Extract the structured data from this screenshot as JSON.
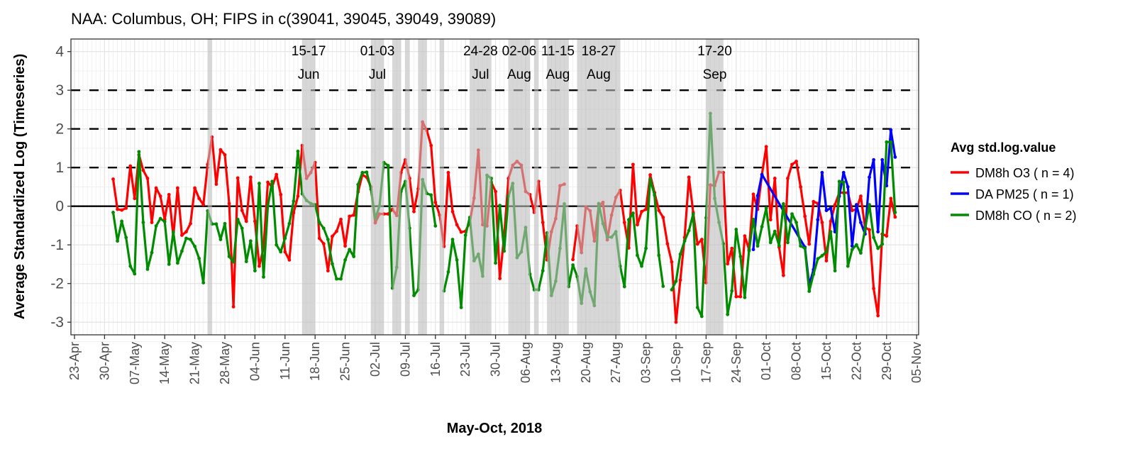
{
  "chart_data": {
    "type": "line",
    "title": "NAA: Columbus, OH; FIPS in c(39041, 39045, 39049, 39089)",
    "xlabel": "May-Oct, 2018",
    "ylabel": "Average Standardized Log (Timeseries)",
    "x_origin_date": "2018-04-23",
    "xlim_dates": [
      "2018-04-22",
      "2018-11-06"
    ],
    "ylim": [
      -3.3,
      4.3
    ],
    "y_ticks": [
      "4",
      "3",
      "2",
      "1",
      "0",
      "-1",
      "-2",
      "-3"
    ],
    "y_tick_values": [
      4,
      3,
      2,
      1,
      0,
      -1,
      -2,
      -3
    ],
    "x_ticks": [
      "23-Apr",
      "30-Apr",
      "07-May",
      "14-May",
      "21-May",
      "28-May",
      "04-Jun",
      "11-Jun",
      "18-Jun",
      "25-Jun",
      "02-Jul",
      "09-Jul",
      "16-Jul",
      "23-Jul",
      "30-Jul",
      "06-Aug",
      "13-Aug",
      "20-Aug",
      "27-Aug",
      "03-Sep",
      "10-Sep",
      "17-Sep",
      "24-Sep",
      "01-Oct",
      "08-Oct",
      "15-Oct",
      "22-Oct",
      "29-Oct",
      "05-Nov"
    ],
    "reference_lines": [
      {
        "y": 0,
        "style": "solid"
      },
      {
        "y": 1,
        "style": "dashed"
      },
      {
        "y": 2,
        "style": "dashed"
      },
      {
        "y": 3,
        "style": "dashed"
      }
    ],
    "grid": true,
    "legend": {
      "title": "Avg std.log.value",
      "placement": "right"
    },
    "series": [
      {
        "name": "DM8h O3 ( n = 4)",
        "color": "#ff0000",
        "start_date": "2018-05-02",
        "connect_gaps": false,
        "values": [
          0.7,
          -0.08,
          -0.1,
          -0.05,
          1.04,
          0.2,
          1.33,
          0.93,
          0.72,
          -0.42,
          0.47,
          0.26,
          -0.34,
          0.3,
          -0.78,
          0.47,
          -0.75,
          -0.66,
          -0.45,
          0.47,
          0.2,
          0.04,
          1.08,
          1.79,
          0.57,
          1.46,
          1.33,
          0.07,
          -2.6,
          0.73,
          -0.11,
          -0.39,
          0.75,
          -0.39,
          -1.55,
          -1.08,
          0.62,
          0.5,
          0.82,
          0.3,
          -1.18,
          -1.39,
          -0.17,
          0.26,
          1.57,
          0.72,
          0.87,
          1.13,
          -0.83,
          -0.97,
          -1.67,
          -0.78,
          -0.65,
          -0.34,
          -1.03,
          -0.26,
          -0.23,
          0.37,
          0.81,
          0.75,
          0.5,
          -0.43,
          -0.2,
          -0.2,
          -0.2,
          -0.08,
          -0.24,
          0.87,
          1.2,
          0.72,
          -0.14,
          0.45,
          2.18,
          1.96,
          1.57,
          0.1,
          -0.23,
          -1.04,
          0.87,
          -0.14,
          -0.48,
          -0.67,
          -0.65,
          -0.42,
          0.21,
          1.45,
          -0.48,
          -0.51,
          0.62,
          0.38,
          -1.87,
          -0.77,
          0.72,
          1.06,
          1.16,
          1.06,
          0.38,
          0.3,
          -0.16,
          0.64,
          -0.42,
          -1.39,
          -0.66,
          -0.32,
          0.53,
          0.57,
          null,
          -1.38,
          -0.51,
          -1.2,
          -0.02,
          -0.12,
          -0.9,
          0.01,
          0.1,
          -0.87,
          -0.23,
          0.23,
          0.41,
          -0.42,
          -1.08,
          1.08,
          -0.48,
          -0.14,
          -0.08,
          0.81,
          0.35,
          -0.11,
          -0.29,
          -0.97,
          -1.44,
          -3.0,
          -1.91,
          -0.81,
          0.75,
          -0.16,
          -0.98,
          -0.86,
          -1.98,
          0.55,
          0.53,
          0.88,
          0.87,
          -1.49,
          -1.09,
          -2.34,
          -2.34,
          -0.77,
          -1.12,
          0.31,
          -0.08,
          0.82,
          1.54,
          -0.35,
          0.72,
          -1.06,
          -1.79,
          0.72,
          1.08,
          1.16,
          0.5,
          -0.26,
          -0.98,
          0.12,
          0.07,
          -0.42,
          -1.41,
          -0.39,
          0.04,
          0.35,
          0.35,
          0.35,
          -0.11,
          -0.08,
          0.26,
          -0.55,
          -0.61,
          -2.13,
          -2.83,
          -0.72,
          -0.77,
          0.2,
          -0.28
        ]
      },
      {
        "name": "DA PM25 ( n = 1)",
        "color": "#0000ff",
        "start_date": "2018-09-28",
        "connect_gaps": true,
        "values": [
          -1.12,
          0.27,
          0.82,
          null,
          null,
          null,
          null,
          null,
          null,
          null,
          null,
          null,
          -1.06,
          -2.04,
          -1.64,
          -0.35,
          0.87,
          -0.11,
          -0.05,
          -0.66,
          0.26,
          0.87,
          0.5,
          -1.03,
          0.04,
          -0.42,
          -0.72,
          0.75,
          1.2,
          -0.66,
          1.2,
          0.53,
          1.97,
          1.27
        ]
      },
      {
        "name": "DM8h CO ( n = 2)",
        "color": "#008b00",
        "start_date": "2018-05-02",
        "connect_gaps": false,
        "values": [
          -0.16,
          -0.9,
          -0.39,
          -0.81,
          -1.55,
          -1.75,
          1.41,
          -0.42,
          -1.63,
          -1.2,
          -0.51,
          -0.32,
          -0.4,
          -1.5,
          -0.67,
          -1.47,
          -1.16,
          -0.83,
          -0.86,
          -1.04,
          -1.35,
          -1.98,
          -0.12,
          -0.46,
          -0.46,
          -0.86,
          -0.45,
          -1.3,
          -1.44,
          -0.34,
          -0.57,
          -1.43,
          -0.9,
          -1.67,
          0.59,
          -1.83,
          0.01,
          0.64,
          -1.0,
          -1.18,
          -0.83,
          -0.45,
          0.13,
          1.42,
          0.32,
          0.15,
          0.07,
          0.04,
          -0.42,
          -0.57,
          -0.86,
          -1.49,
          -1.88,
          -1.88,
          -1.39,
          -1.12,
          -1.3,
          0.56,
          0.87,
          0.88,
          0.44,
          -0.32,
          0.01,
          1.13,
          1.05,
          -2.12,
          -1.58,
          0.38,
          0.64,
          -0.57,
          -2.31,
          -2.16,
          0.69,
          0.33,
          0.29,
          -0.51,
          null,
          -2.19,
          -1.7,
          -0.86,
          -1.39,
          -2.62,
          -0.75,
          -0.29,
          -1.41,
          -1.24,
          -1.81,
          0.8,
          0.72,
          -1.47,
          0.02,
          -1.16,
          0.26,
          0.59,
          -1.33,
          -1.18,
          -0.55,
          -1.76,
          -2.16,
          -2.16,
          -1.67,
          -0.69,
          -2.31,
          -1.94,
          -1.09,
          0.06,
          -2.08,
          -1.52,
          -1.82,
          -2.51,
          -1.62,
          -2.21,
          -2.57,
          0.07,
          -0.45,
          -0.8,
          -0.8,
          -0.66,
          -1.55,
          -2.08,
          -0.35,
          -0.18,
          -1.27,
          -1.55,
          -1.09,
          0.7,
          0.29,
          -1.27,
          -2.07,
          null,
          -2.16,
          -1.94,
          -1.24,
          -0.9,
          -0.63,
          -0.2,
          -2.62,
          -2.85,
          -0.3,
          2.4,
          0.2,
          -0.42,
          -0.97,
          -2.8,
          -2.19,
          -0.6,
          -1.3,
          -2.36,
          -1.15,
          -0.34,
          -1.03,
          -0.53,
          -0.05,
          -0.94,
          -0.65,
          -1.02,
          0.06,
          -0.94,
          -0.2,
          -0.42,
          -1.03,
          -1.09,
          -2.2,
          -1.76,
          -1.36,
          -1.28,
          -1.18,
          -0.66,
          -1.67,
          0.64,
          0.62,
          -1.55,
          -1.12,
          -1.0,
          -1.21,
          -0.59,
          0.04,
          -0.81,
          -1.09,
          -0.98,
          1.66,
          1.66,
          -0.16
        ]
      }
    ],
    "highlight_bands": [
      {
        "start": "2018-05-24",
        "end": "2018-05-24",
        "label_top": "",
        "label_bottom": ""
      },
      {
        "start": "2018-06-15",
        "end": "2018-06-17",
        "label_top": "15-17",
        "label_bottom": "Jun"
      },
      {
        "start": "2018-07-01",
        "end": "2018-07-03",
        "label_top": "01-03",
        "label_bottom": "Jul"
      },
      {
        "start": "2018-07-06",
        "end": "2018-07-07",
        "label_top": "",
        "label_bottom": ""
      },
      {
        "start": "2018-07-09",
        "end": "2018-07-09",
        "label_top": "",
        "label_bottom": ""
      },
      {
        "start": "2018-07-12",
        "end": "2018-07-13",
        "label_top": "",
        "label_bottom": ""
      },
      {
        "start": "2018-07-17",
        "end": "2018-07-17",
        "label_top": "",
        "label_bottom": ""
      },
      {
        "start": "2018-07-24",
        "end": "2018-07-28",
        "label_top": "24-28",
        "label_bottom": "Jul"
      },
      {
        "start": "2018-08-02",
        "end": "2018-08-06",
        "label_top": "02-06",
        "label_bottom": "Aug"
      },
      {
        "start": "2018-08-08",
        "end": "2018-08-08",
        "label_top": "",
        "label_bottom": ""
      },
      {
        "start": "2018-08-11",
        "end": "2018-08-15",
        "label_top": "11-15",
        "label_bottom": "Aug"
      },
      {
        "start": "2018-08-18",
        "end": "2018-08-27",
        "label_top": "18-27",
        "label_bottom": "Aug"
      },
      {
        "start": "2018-09-17",
        "end": "2018-09-20",
        "label_top": "17-20",
        "label_bottom": "Sep"
      }
    ]
  }
}
